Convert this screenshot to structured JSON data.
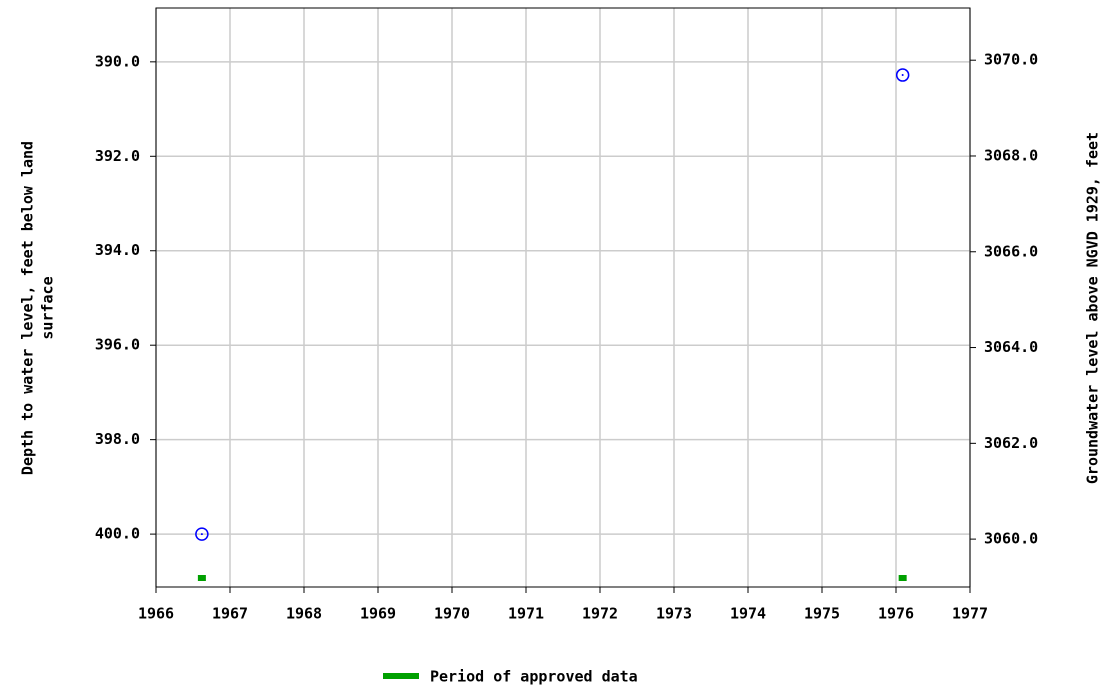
{
  "chart_data": {
    "type": "scatter",
    "ylabel": [
      "Depth to water level, feet below land",
      "surface"
    ],
    "y2label": "Groundwater level above NGVD 1929, feet",
    "xlim": [
      1966,
      1977
    ],
    "xticks": [
      1966,
      1967,
      1968,
      1969,
      1970,
      1971,
      1972,
      1973,
      1974,
      1975,
      1976,
      1977
    ],
    "ylim": [
      401.12,
      388.86
    ],
    "yticks": [
      {
        "value": 390,
        "label": "390.0"
      },
      {
        "value": 392,
        "label": "392.0"
      },
      {
        "value": 394,
        "label": "394.0"
      },
      {
        "value": 396,
        "label": "396.0"
      },
      {
        "value": 398,
        "label": "398.0"
      },
      {
        "value": 400,
        "label": "400.0"
      }
    ],
    "y2lim": [
      3059.0,
      3071.09
    ],
    "y2ticks": [
      {
        "value": 3060,
        "label": "3060.0"
      },
      {
        "value": 3062,
        "label": "3062.0"
      },
      {
        "value": 3064,
        "label": "3064.0"
      },
      {
        "value": 3066,
        "label": "3066.0"
      },
      {
        "value": 3068,
        "label": "3068.0"
      },
      {
        "value": 3070,
        "label": "3070.0"
      }
    ],
    "grid": true,
    "series": [
      {
        "color": "#0000ff",
        "x": [
          1966.62,
          1976.09
        ],
        "values": [
          400.0,
          390.28
        ]
      }
    ],
    "approved": {
      "name": "Period of approved data",
      "color": "#00a000",
      "x": [
        1966.62,
        1976.09
      ]
    }
  }
}
